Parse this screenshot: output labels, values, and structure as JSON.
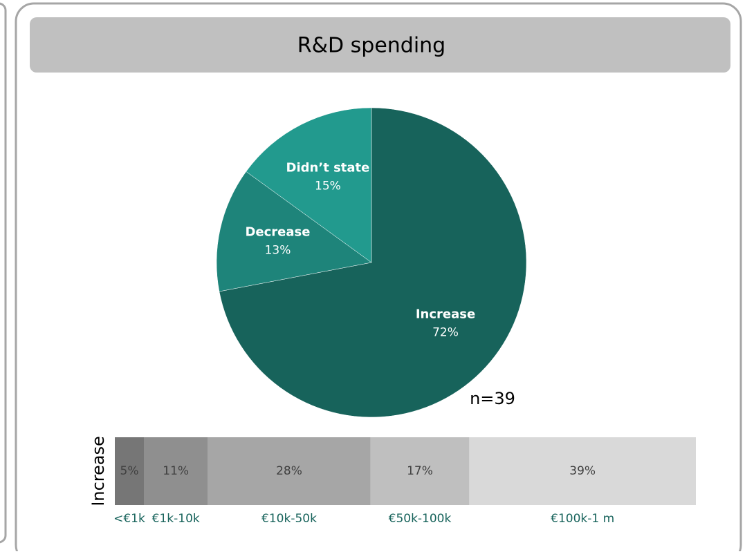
{
  "chart_data": [
    {
      "type": "pie",
      "title": "R&D spending",
      "categories": [
        "Increase",
        "Decrease",
        "Didn’t state"
      ],
      "values": [
        72,
        13,
        15
      ],
      "value_labels": [
        "72%",
        "13%",
        "15%"
      ],
      "colors": [
        "#17635b",
        "#1e847a",
        "#229a8e"
      ],
      "annotation": "n=39"
    },
    {
      "type": "stacked-bar",
      "categories": [
        "Increase"
      ],
      "series": [
        {
          "name": "<€1k",
          "color": "#767676",
          "values": [
            5
          ],
          "value_labels": [
            "5%"
          ]
        },
        {
          "name": "€1k-10k",
          "color": "#8f8f8f",
          "values": [
            11
          ],
          "value_labels": [
            "11%"
          ]
        },
        {
          "name": "€10k-50k",
          "color": "#a6a6a6",
          "values": [
            28
          ],
          "value_labels": [
            "28%"
          ]
        },
        {
          "name": "€50k-100k",
          "color": "#bfbfbf",
          "values": [
            17
          ],
          "value_labels": [
            "17%"
          ]
        },
        {
          "name": "€100k-1 m",
          "color": "#d9d9d9",
          "values": [
            39
          ],
          "value_labels": [
            "39%"
          ]
        }
      ]
    }
  ]
}
